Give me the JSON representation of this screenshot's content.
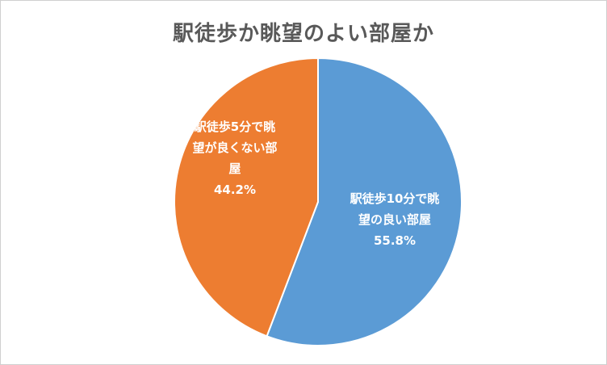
{
  "chart_data": {
    "type": "pie",
    "title": "駅徒歩か眺望のよい部屋か",
    "slices": [
      {
        "label_lines": [
          "駅徒歩10分で眺",
          "望の良い部屋"
        ],
        "value": 55.8,
        "value_label": "55.8%",
        "color": "#5B9BD5"
      },
      {
        "label_lines": [
          "駅徒歩5分で眺",
          "望が良くない部",
          "屋"
        ],
        "value": 44.2,
        "value_label": "44.2%",
        "color": "#ED7D31"
      }
    ],
    "legend": "none"
  }
}
